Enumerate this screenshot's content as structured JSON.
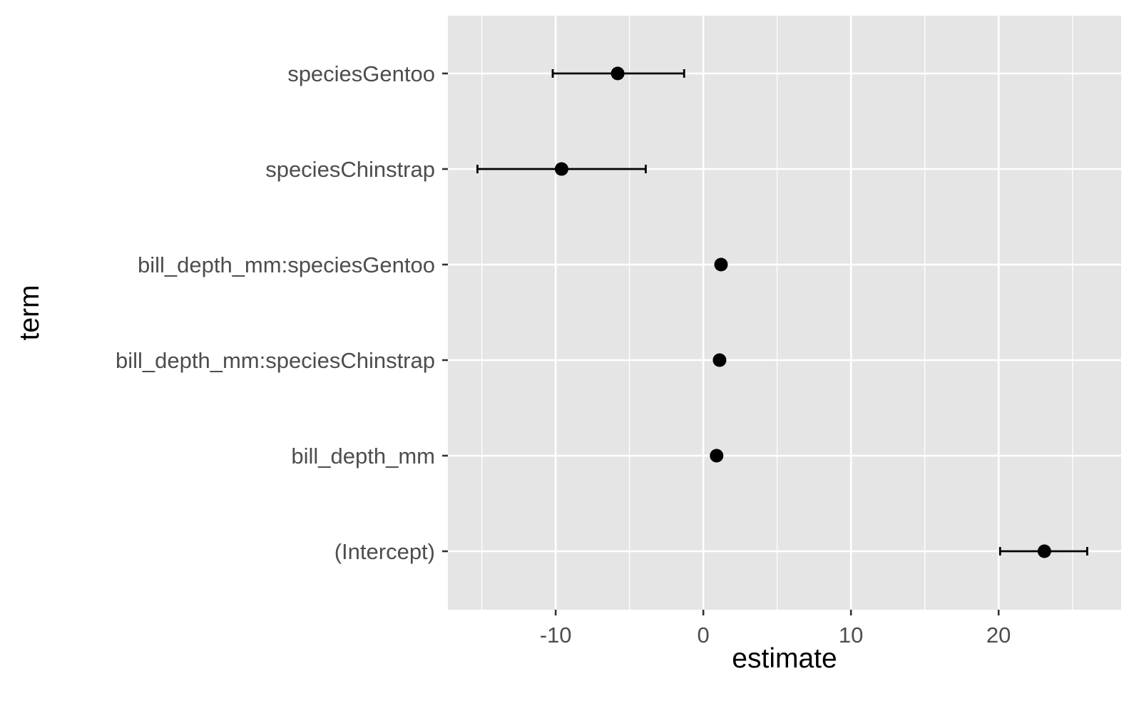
{
  "chart_data": {
    "type": "scatter",
    "subtype": "coefficient-plot-with-error-bars",
    "xlabel": "estimate",
    "ylabel": "term",
    "xlim": [
      -17.3,
      28.3
    ],
    "x_ticks": [
      -10,
      0,
      10,
      20
    ],
    "x_tick_labels": [
      "-10",
      "0",
      "10",
      "20"
    ],
    "grid": true,
    "panel_background": "#e5e5e5",
    "grid_color": "#ffffff",
    "point_color": "#000000",
    "terms": [
      {
        "term": "speciesGentoo",
        "estimate": -5.8,
        "conf_low": -10.2,
        "conf_high": -1.3
      },
      {
        "term": "speciesChinstrap",
        "estimate": -9.6,
        "conf_low": -15.3,
        "conf_high": -3.9
      },
      {
        "term": "bill_depth_mm:speciesGentoo",
        "estimate": 1.2,
        "conf_low": 1.0,
        "conf_high": 1.4
      },
      {
        "term": "bill_depth_mm:speciesChinstrap",
        "estimate": 1.1,
        "conf_low": 0.9,
        "conf_high": 1.3
      },
      {
        "term": "bill_depth_mm",
        "estimate": 0.9,
        "conf_low": 0.75,
        "conf_high": 1.05
      },
      {
        "term": "(Intercept)",
        "estimate": 23.1,
        "conf_low": 20.1,
        "conf_high": 26.0
      }
    ]
  }
}
